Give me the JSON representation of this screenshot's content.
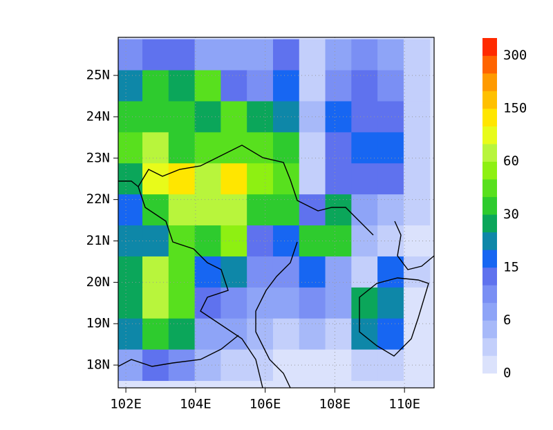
{
  "chart_data": {
    "type": "contour-map",
    "xlim": [
      101.78,
      110.85
    ],
    "ylim": [
      17.45,
      25.92
    ],
    "xticks": [
      {
        "value": 102,
        "label": "102E"
      },
      {
        "value": 104,
        "label": "104E"
      },
      {
        "value": 106,
        "label": "106E"
      },
      {
        "value": 108,
        "label": "108E"
      },
      {
        "value": 110,
        "label": "110E"
      }
    ],
    "yticks": [
      {
        "value": 18,
        "label": "18N"
      },
      {
        "value": 19,
        "label": "19N"
      },
      {
        "value": 20,
        "label": "20N"
      },
      {
        "value": 21,
        "label": "21N"
      },
      {
        "value": 22,
        "label": "22N"
      },
      {
        "value": 23,
        "label": "23N"
      },
      {
        "value": 24,
        "label": "24N"
      },
      {
        "value": 25,
        "label": "25N"
      }
    ],
    "grid": true,
    "lon": [
      102.1,
      102.85,
      103.6,
      104.35,
      105.1,
      105.85,
      106.6,
      107.35,
      108.1,
      108.85,
      109.6,
      110.35
    ],
    "lat": [
      25.5,
      24.75,
      24.0,
      23.25,
      22.5,
      21.75,
      21.0,
      20.25,
      19.5,
      18.75,
      18.0
    ],
    "field": [
      [
        9,
        14,
        12,
        8,
        6,
        7,
        12,
        3,
        8,
        10,
        8,
        2
      ],
      [
        20,
        30,
        25,
        40,
        12,
        10,
        15,
        3,
        10,
        12,
        10,
        2
      ],
      [
        30,
        35,
        30,
        25,
        40,
        25,
        20,
        4,
        15,
        12,
        12,
        3
      ],
      [
        40,
        70,
        35,
        45,
        40,
        45,
        35,
        2,
        12,
        15,
        15,
        2
      ],
      [
        25,
        90,
        120,
        70,
        130,
        50,
        40,
        3,
        14,
        12,
        12,
        2
      ],
      [
        15,
        30,
        70,
        80,
        70,
        35,
        30,
        12,
        25,
        8,
        5,
        2
      ],
      [
        20,
        20,
        45,
        30,
        50,
        12,
        15,
        30,
        35,
        4,
        2,
        1
      ],
      [
        25,
        60,
        40,
        15,
        20,
        10,
        10,
        15,
        8,
        3,
        15,
        2
      ],
      [
        25,
        70,
        45,
        12,
        10,
        8,
        8,
        10,
        6,
        25,
        20,
        1
      ],
      [
        20,
        35,
        25,
        6,
        8,
        4,
        3,
        4,
        3,
        20,
        15,
        1
      ],
      [
        8,
        12,
        10,
        4,
        3,
        2,
        1,
        1,
        1,
        2,
        2,
        1
      ]
    ],
    "colorbar": {
      "levels": [
        0,
        2,
        4,
        6,
        9,
        12,
        15,
        20,
        25,
        30,
        40,
        50,
        60,
        90,
        120,
        150,
        200,
        250,
        300
      ],
      "colors": [
        "#dbe2fc",
        "#c3cffb",
        "#a7b9f9",
        "#8ea4f7",
        "#7a8ff4",
        "#5f72ee",
        "#1766f2",
        "#0e87a8",
        "#0ba65a",
        "#2ecb2e",
        "#58e01e",
        "#8ef012",
        "#b8f53c",
        "#e8fb1a",
        "#ffe600",
        "#ffc000",
        "#ff9a00",
        "#ff6400",
        "#ff2a00"
      ],
      "ticks": [
        0,
        6,
        15,
        30,
        60,
        150,
        300
      ]
    }
  }
}
